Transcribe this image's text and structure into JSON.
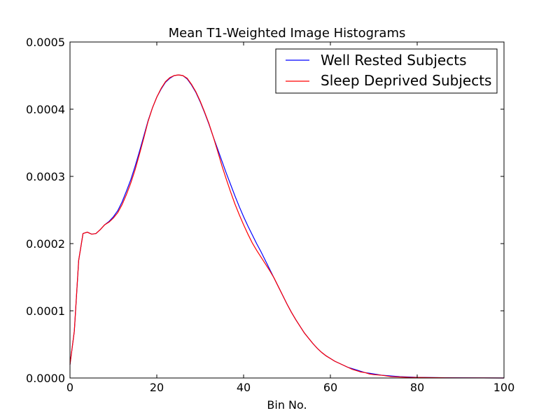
{
  "chart_data": {
    "type": "line",
    "title": "Mean T1-Weighted Image Histograms",
    "xlabel": "Bin No.",
    "ylabel": "",
    "xlim": [
      0,
      100
    ],
    "ylim": [
      0,
      0.0005
    ],
    "grid": false,
    "legend_position": "top-right",
    "x_ticks": [
      0,
      20,
      40,
      60,
      80,
      100
    ],
    "x_tick_labels": [
      "0",
      "20",
      "40",
      "60",
      "80",
      "100"
    ],
    "y_ticks": [
      0,
      0.0001,
      0.0002,
      0.0003,
      0.0004,
      0.0005
    ],
    "y_tick_labels": [
      "0.0000",
      "0.0001",
      "0.0002",
      "0.0003",
      "0.0004",
      "0.0005"
    ],
    "x": [
      0,
      1,
      2,
      3,
      4,
      5,
      6,
      7,
      8,
      9,
      10,
      11,
      12,
      13,
      14,
      15,
      16,
      17,
      18,
      19,
      20,
      21,
      22,
      23,
      24,
      25,
      26,
      27,
      28,
      29,
      30,
      31,
      32,
      33,
      34,
      35,
      36,
      37,
      38,
      39,
      40,
      41,
      42,
      43,
      44,
      45,
      46,
      47,
      48,
      49,
      50,
      51,
      52,
      53,
      54,
      55,
      56,
      57,
      58,
      59,
      60,
      61,
      62,
      63,
      64,
      65,
      66,
      67,
      68,
      69,
      70,
      72,
      74,
      76,
      78,
      80,
      85,
      90,
      95,
      100
    ],
    "series": [
      {
        "name": "Well Rested Subjects",
        "color": "#0000ff",
        "values": [
          2e-05,
          7e-05,
          0.000175,
          0.000215,
          0.000217,
          0.000214,
          0.000215,
          0.000221,
          0.000228,
          0.000233,
          0.00024,
          0.000249,
          0.000262,
          0.000278,
          0.000295,
          0.000315,
          0.000337,
          0.00036,
          0.000383,
          0.000402,
          0.000418,
          0.00043,
          0.00044,
          0.000446,
          0.00045,
          0.000451,
          0.00045,
          0.000445,
          0.000436,
          0.000425,
          0.000411,
          0.000395,
          0.000378,
          0.000359,
          0.000341,
          0.000323,
          0.000305,
          0.000288,
          0.000271,
          0.000255,
          0.00024,
          0.000226,
          0.000213,
          0.0002,
          0.000188,
          0.000175,
          0.000162,
          0.000149,
          0.000136,
          0.000123,
          0.00011,
          9.8e-05,
          8.7e-05,
          7.7e-05,
          6.7e-05,
          5.9e-05,
          5.1e-05,
          4.4e-05,
          3.8e-05,
          3.3e-05,
          2.9e-05,
          2.5e-05,
          2.2e-05,
          1.9e-05,
          1.6e-05,
          1.4e-05,
          1.2e-05,
          1e-05,
          8e-06,
          7e-06,
          6e-06,
          4e-06,
          3e-06,
          2e-06,
          1.5e-06,
          1e-06,
          5e-07,
          3e-07,
          1e-07,
          0.0
        ]
      },
      {
        "name": "Sleep Deprived Subjects",
        "color": "#ff0000",
        "values": [
          2e-05,
          7e-05,
          0.000175,
          0.000215,
          0.000217,
          0.000214,
          0.000215,
          0.000221,
          0.000228,
          0.000232,
          0.000238,
          0.000246,
          0.000258,
          0.000273,
          0.00029,
          0.00031,
          0.000333,
          0.000357,
          0.000382,
          0.000402,
          0.000418,
          0.000431,
          0.000441,
          0.000447,
          0.00045,
          0.000451,
          0.00045,
          0.000446,
          0.000437,
          0.000426,
          0.000412,
          0.000396,
          0.000379,
          0.000359,
          0.000338,
          0.000316,
          0.000296,
          0.000277,
          0.000259,
          0.000243,
          0.000228,
          0.000214,
          0.000201,
          0.00019,
          0.00018,
          0.00017,
          0.00016,
          0.000149,
          0.000136,
          0.000123,
          0.00011,
          9.8e-05,
          8.7e-05,
          7.7e-05,
          6.7e-05,
          5.9e-05,
          5.1e-05,
          4.4e-05,
          3.8e-05,
          3.3e-05,
          2.9e-05,
          2.5e-05,
          2.2e-05,
          1.9e-05,
          1.6e-05,
          1.3e-05,
          1.1e-05,
          9e-06,
          8e-06,
          6e-06,
          5e-06,
          4e-06,
          2e-06,
          1.5e-06,
          1e-06,
          8e-07,
          4e-07,
          2e-07,
          1e-07,
          0.0
        ]
      }
    ]
  }
}
